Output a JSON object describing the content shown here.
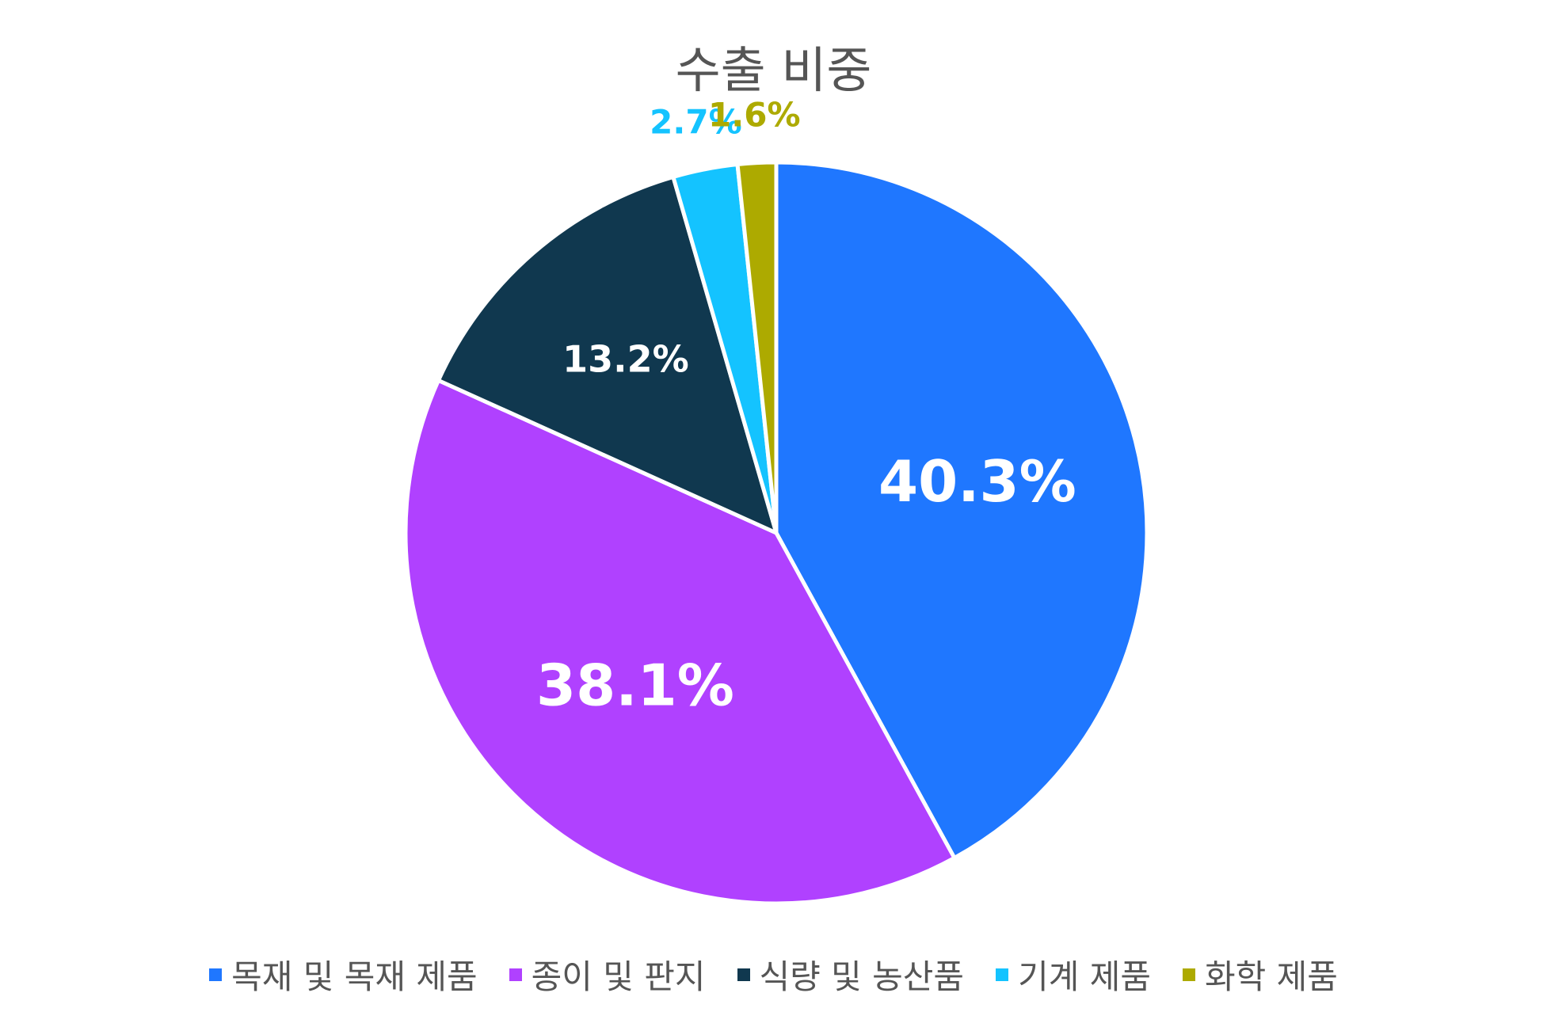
{
  "chart_data": {
    "type": "pie",
    "title": "수출 비중",
    "categories": [
      "목재 및 목재 제품",
      "종이 및 판지",
      "식량 및 농산품",
      "기계 제품",
      "화학 제품"
    ],
    "values": [
      40.3,
      38.1,
      13.2,
      2.7,
      1.6
    ],
    "labels": [
      "40.3%",
      "38.1%",
      "13.2%",
      "2.7%",
      "1.6%"
    ],
    "colors": [
      "#1F77FF",
      "#B041FF",
      "#10384F",
      "#14C3FF",
      "#ADAA00"
    ],
    "legend_position": "bottom",
    "start_angle": "12 o'clock",
    "direction": "clockwise"
  }
}
